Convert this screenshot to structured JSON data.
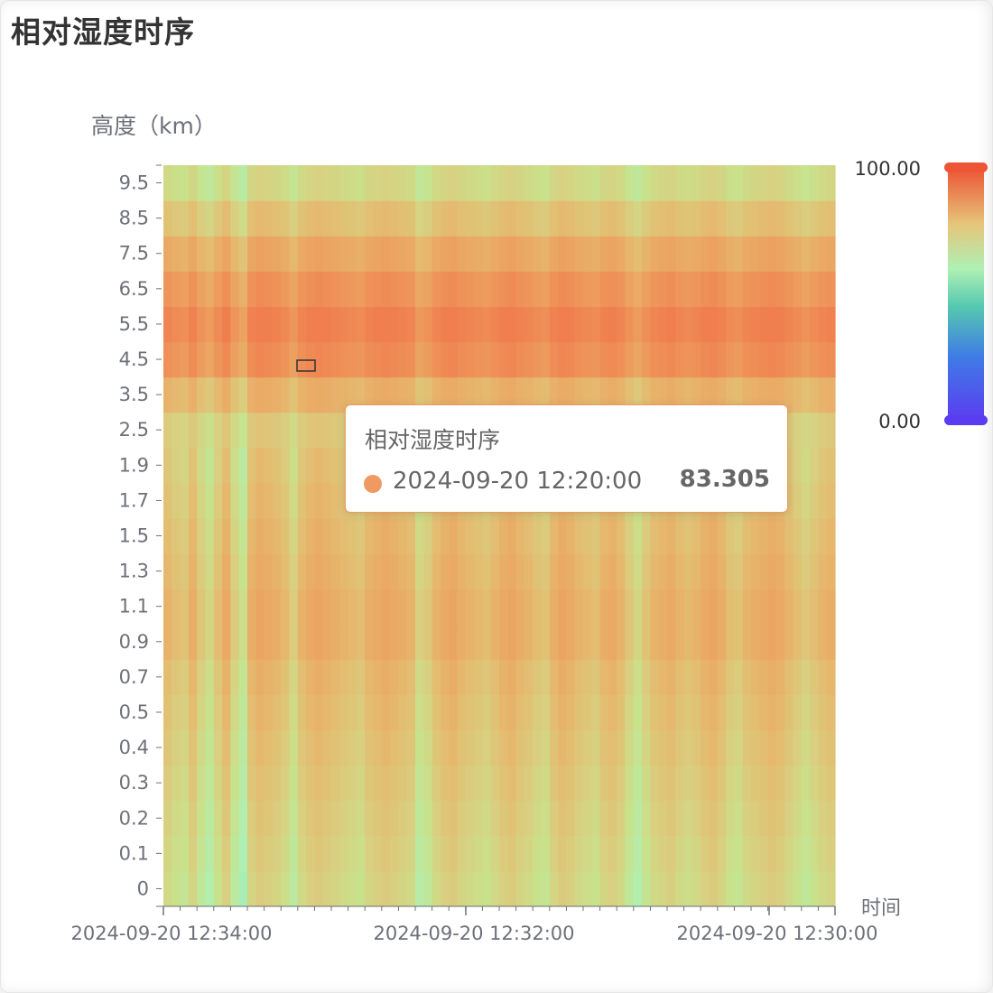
{
  "panel": {
    "title": "相对湿度时序"
  },
  "chart_data": {
    "type": "heatmap",
    "title": "",
    "xlabel": "时间",
    "ylabel": "高度（km）",
    "x_ticks": [
      "2024-09-20 12:34:00",
      "2024-09-20 12:32:00",
      "2024-09-20 12:30:00"
    ],
    "y_categories": [
      "0",
      "0.1",
      "0.2",
      "0.3",
      "0.4",
      "0.5",
      "0.7",
      "0.9",
      "1.1",
      "1.3",
      "1.5",
      "1.7",
      "1.9",
      "2.5",
      "3.5",
      "4.5",
      "5.5",
      "6.5",
      "7.5",
      "8.5",
      "9.5"
    ],
    "y_labels_shown": [
      "0",
      "0.1",
      "0.2",
      "0.3",
      "0.4",
      "0.5",
      "0.7",
      "0.9",
      "1.1",
      "1.3",
      "1.5",
      "1.7",
      "1.9",
      "2.5",
      "3.5",
      "4.5",
      "5.5",
      "6.5",
      "7.5",
      "8.5",
      "9.5"
    ],
    "row_values": [
      68,
      69,
      70,
      71,
      72,
      73,
      74,
      76,
      76,
      75,
      74,
      73,
      72,
      71,
      76,
      83,
      85,
      82,
      78,
      73,
      68
    ],
    "column_offsets": [
      0,
      -2,
      -3,
      1,
      -4,
      -7,
      -2,
      2,
      -5,
      -9,
      1,
      3,
      2,
      1,
      -1,
      -5,
      0,
      2,
      3,
      2,
      1,
      0,
      -1,
      -2,
      1,
      2,
      3,
      2,
      1,
      0,
      -6,
      -4,
      0,
      2,
      3,
      1,
      0,
      -1,
      -2,
      0,
      2,
      3,
      1,
      0,
      -2,
      -3,
      1,
      3,
      2,
      0,
      -1,
      -2,
      1,
      2,
      0,
      -4,
      -7,
      -3,
      0,
      1,
      2,
      0,
      -1,
      0,
      2,
      3,
      1,
      -2,
      -3,
      0,
      1,
      2,
      3,
      2,
      0,
      -2,
      -4,
      -2,
      0,
      1
    ],
    "visual_map": {
      "min": 0,
      "max": 100,
      "min_label": "0.00",
      "max_label": "100.00"
    },
    "colors": [
      "#313695",
      "#4575b4",
      "#74add1",
      "#abd9e9",
      "#e0f3f8",
      "#ffffbf",
      "#fee090",
      "#fdae61",
      "#f46d43",
      "#d73027",
      "#a50026"
    ],
    "highlight": {
      "time": "2024-09-20 12:20:00",
      "height": "4.5",
      "value": "83.305"
    }
  },
  "tooltip": {
    "title": "相对湿度时序",
    "time": "2024-09-20 12:20:00",
    "value": "83.305",
    "color": "#ee9a62"
  }
}
